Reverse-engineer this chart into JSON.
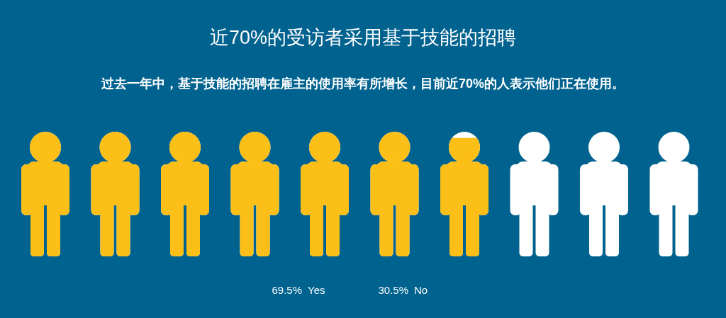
{
  "chart_data": {
    "type": "other",
    "title": "近70%的受访者采用基于技能的招聘",
    "subtitle": "过去一年中，基于技能的招聘在雇主的使用率有所增长，目前近70%的人表示他们正在使用。",
    "categories": [
      "Yes",
      "No"
    ],
    "values": [
      69.5,
      30.5
    ],
    "colors": [
      "#fcbf17",
      "#ffffff"
    ],
    "value_labels": [
      "69.5%",
      "30.5%"
    ]
  }
}
